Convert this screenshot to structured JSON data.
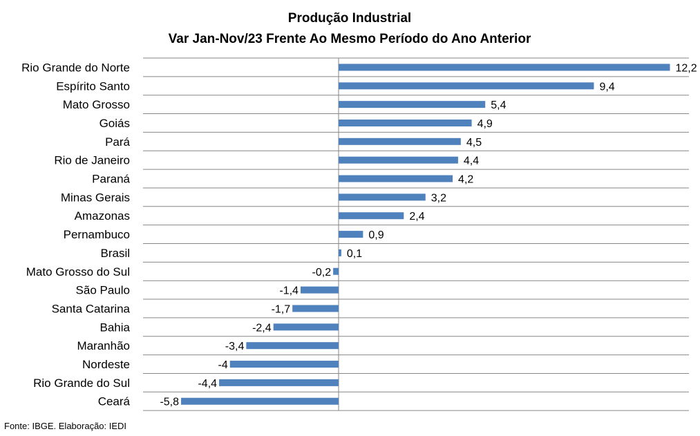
{
  "chart_data": {
    "type": "bar",
    "orientation": "horizontal",
    "title": "Produção Industrial",
    "subtitle": "Var Jan-Nov/23 Frente Ao Mesmo Período do Ano Anterior",
    "categories": [
      "Rio Grande do Norte",
      "Espírito Santo",
      "Mato Grosso",
      "Goiás",
      "Pará",
      "Rio de Janeiro",
      "Paraná",
      "Minas Gerais",
      "Amazonas",
      "Pernambuco",
      "Brasil",
      "Mato Grosso do Sul",
      "São Paulo",
      "Santa Catarina",
      "Bahia",
      "Maranhão",
      "Nordeste",
      "Rio Grande do Sul",
      "Ceará"
    ],
    "values": [
      12.2,
      9.4,
      5.4,
      4.9,
      4.5,
      4.4,
      4.2,
      3.2,
      2.4,
      0.9,
      0.1,
      -0.2,
      -1.4,
      -1.7,
      -2.4,
      -3.4,
      -4,
      -4.4,
      -5.8
    ],
    "value_labels": [
      "12,2",
      "9,4",
      "5,4",
      "4,9",
      "4,5",
      "4,4",
      "4,2",
      "3,2",
      "2,4",
      "0,9",
      "0,1",
      "-0,2",
      "-1,4",
      "-1,7",
      "-2,4",
      "-3,4",
      "-4",
      "-4,4",
      "-5,8"
    ],
    "xlim": [
      -7.2,
      12.9
    ],
    "xlabel": "",
    "ylabel": "",
    "grid": "horizontal",
    "legend": "none",
    "bar_color": "#4f81bd",
    "grid_color": "#868686"
  },
  "source": "Fonte: IBGE. Elaboração: IEDI"
}
